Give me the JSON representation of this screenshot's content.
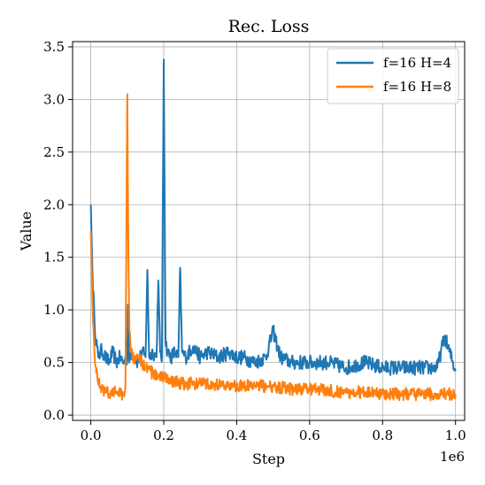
{
  "chart_data": {
    "type": "line",
    "title": "Rec. Loss",
    "xlabel": "Step",
    "ylabel": "Value",
    "x_offset_label": "1e6",
    "xlim": [
      -0.05,
      1.025
    ],
    "ylim": [
      -0.05,
      3.55
    ],
    "xticks": [
      0.0,
      0.2,
      0.4,
      0.6,
      0.8,
      1.0
    ],
    "xtick_labels": [
      "0.0",
      "0.2",
      "0.4",
      "0.6",
      "0.8",
      "1.0"
    ],
    "yticks": [
      0.0,
      0.5,
      1.0,
      1.5,
      2.0,
      2.5,
      3.0,
      3.5
    ],
    "ytick_labels": [
      "0.0",
      "0.5",
      "1.0",
      "1.5",
      "2.0",
      "2.5",
      "3.0",
      "3.5"
    ],
    "grid": true,
    "legend_position": "top-right",
    "series": [
      {
        "name": "f=16 H=4",
        "color": "#1f77b4",
        "x": [
          0.0,
          0.005,
          0.01,
          0.015,
          0.02,
          0.03,
          0.04,
          0.05,
          0.06,
          0.07,
          0.08,
          0.09,
          0.1,
          0.102,
          0.105,
          0.11,
          0.12,
          0.13,
          0.14,
          0.15,
          0.155,
          0.16,
          0.17,
          0.18,
          0.185,
          0.19,
          0.195,
          0.2,
          0.205,
          0.21,
          0.22,
          0.23,
          0.24,
          0.245,
          0.25,
          0.26,
          0.28,
          0.3,
          0.32,
          0.35,
          0.38,
          0.4,
          0.42,
          0.45,
          0.48,
          0.5,
          0.52,
          0.55,
          0.6,
          0.65,
          0.7,
          0.75,
          0.8,
          0.85,
          0.9,
          0.95,
          0.97,
          1.0
        ],
        "y": [
          2.0,
          1.3,
          0.9,
          0.7,
          0.55,
          0.62,
          0.55,
          0.5,
          0.6,
          0.5,
          0.55,
          0.5,
          0.55,
          1.05,
          0.5,
          0.6,
          0.55,
          0.5,
          0.6,
          0.55,
          1.38,
          0.55,
          0.6,
          0.55,
          1.28,
          0.6,
          0.55,
          3.38,
          0.7,
          0.6,
          0.55,
          0.6,
          0.55,
          1.4,
          0.6,
          0.55,
          0.65,
          0.55,
          0.6,
          0.55,
          0.6,
          0.55,
          0.55,
          0.5,
          0.55,
          0.8,
          0.55,
          0.5,
          0.5,
          0.5,
          0.45,
          0.5,
          0.45,
          0.45,
          0.45,
          0.45,
          0.75,
          0.42
        ],
        "noise": 0.07
      },
      {
        "name": "f=16 H=8",
        "color": "#ff7f0e",
        "x": [
          0.0,
          0.005,
          0.01,
          0.015,
          0.02,
          0.03,
          0.05,
          0.07,
          0.09,
          0.095,
          0.1,
          0.103,
          0.106,
          0.11,
          0.12,
          0.13,
          0.15,
          0.17,
          0.2,
          0.25,
          0.3,
          0.35,
          0.4,
          0.45,
          0.5,
          0.55,
          0.6,
          0.65,
          0.7,
          0.75,
          0.8,
          0.85,
          0.9,
          0.95,
          1.0
        ],
        "y": [
          1.75,
          1.0,
          0.6,
          0.4,
          0.3,
          0.25,
          0.2,
          0.22,
          0.2,
          0.3,
          3.05,
          1.5,
          0.8,
          0.6,
          0.5,
          0.55,
          0.45,
          0.4,
          0.35,
          0.3,
          0.3,
          0.28,
          0.28,
          0.28,
          0.27,
          0.25,
          0.25,
          0.23,
          0.22,
          0.22,
          0.2,
          0.2,
          0.2,
          0.2,
          0.2
        ],
        "noise": 0.06
      }
    ]
  }
}
